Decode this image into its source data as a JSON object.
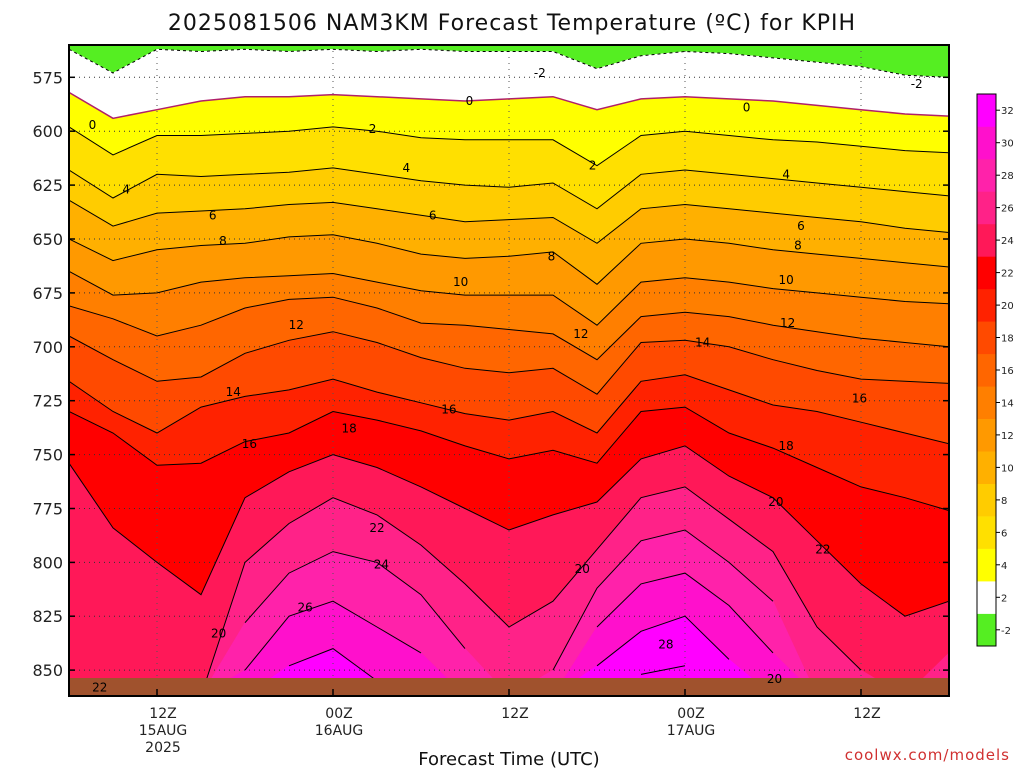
{
  "chart_data": {
    "type": "heatmap",
    "title": "2025081506 NAM3KM Forecast Temperature (ºC) for KPIH",
    "xlabel": "Forecast Time (UTC)",
    "ylabel": "",
    "y_axis": {
      "inverted": true,
      "ylim": [
        560,
        862
      ],
      "ticks": [
        575,
        600,
        625,
        650,
        675,
        700,
        725,
        750,
        775,
        800,
        825,
        850
      ]
    },
    "x_axis": {
      "range_hours_from_15AUG_00Z": [
        6,
        66
      ],
      "ticks": [
        {
          "hour": 12,
          "lines": [
            "12Z",
            "15AUG",
            "2025"
          ]
        },
        {
          "hour": 24,
          "lines": [
            "00Z",
            "16AUG"
          ]
        },
        {
          "hour": 36,
          "lines": [
            "12Z"
          ]
        },
        {
          "hour": 48,
          "lines": [
            "00Z",
            "17AUG"
          ]
        },
        {
          "hour": 60,
          "lines": [
            "12Z"
          ]
        }
      ]
    },
    "grid": true,
    "colorbar": {
      "levels": [
        -2,
        2,
        4,
        6,
        8,
        10,
        12,
        14,
        16,
        18,
        20,
        22,
        24,
        26,
        28,
        30,
        32
      ],
      "tick_labels": [
        "-2",
        "2",
        "4",
        "6",
        "8",
        "10",
        "12",
        "14",
        "16",
        "18",
        "20",
        "22",
        "24",
        "26",
        "28",
        "30",
        "32"
      ],
      "colors": [
        "#55ee22",
        "#ffffff",
        "#ffff00",
        "#ffe000",
        "#ffcc00",
        "#ffb000",
        "#ff9900",
        "#ff7f00",
        "#ff6600",
        "#ff4a00",
        "#ff2200",
        "#ff0000",
        "#ff1858",
        "#ff2288",
        "#ff22aa",
        "#ff10cc",
        "#ff00ff"
      ]
    },
    "ground_color": "#a0522d",
    "columns": [
      {
        "hour": 6,
        "isotherms": {
          "-2": 562,
          "0": 582,
          "2": 598,
          "4": 618,
          "6": 632,
          "8": 650,
          "10": 665,
          "12": 681,
          "14": 695,
          "16": 716,
          "18": 730,
          "20": 754,
          "22": 862
        }
      },
      {
        "hour": 9,
        "isotherms": {
          "-2": 573,
          "0": 594,
          "2": 611,
          "4": 631,
          "6": 644,
          "8": 660,
          "10": 676,
          "12": 687,
          "14": 706,
          "16": 730,
          "18": 740,
          "20": 784,
          "22": 862
        }
      },
      {
        "hour": 12,
        "isotherms": {
          "-2": 562,
          "0": 590,
          "2": 602,
          "4": 620,
          "6": 638,
          "8": 655,
          "10": 675,
          "12": 695,
          "14": 716,
          "16": 740,
          "18": 755,
          "20": 800,
          "22": 862
        }
      },
      {
        "hour": 15,
        "isotherms": {
          "-2": 563,
          "0": 586,
          "2": 602,
          "4": 621,
          "6": 637,
          "8": 653,
          "10": 670,
          "12": 690,
          "14": 714,
          "16": 728,
          "18": 754,
          "20": 815,
          "22": 862
        }
      },
      {
        "hour": 18,
        "isotherms": {
          "-2": 562,
          "0": 584,
          "2": 601,
          "4": 620,
          "6": 636,
          "8": 652,
          "10": 668,
          "12": 682,
          "14": 703,
          "16": 723,
          "18": 744,
          "20": 770,
          "22": 800,
          "24": 828,
          "26": 850
        }
      },
      {
        "hour": 21,
        "isotherms": {
          "-2": 563,
          "0": 584,
          "2": 600,
          "4": 619,
          "6": 634,
          "8": 649,
          "10": 667,
          "12": 678,
          "14": 697,
          "16": 720,
          "18": 740,
          "20": 758,
          "22": 782,
          "24": 805,
          "26": 825,
          "28": 848
        }
      },
      {
        "hour": 24,
        "isotherms": {
          "-2": 562,
          "0": 583,
          "2": 598,
          "4": 617,
          "6": 633,
          "8": 648,
          "10": 666,
          "12": 677,
          "14": 693,
          "16": 715,
          "18": 730,
          "20": 750,
          "22": 770,
          "24": 795,
          "26": 818,
          "28": 840
        }
      },
      {
        "hour": 27,
        "isotherms": {
          "-2": 563,
          "0": 584,
          "2": 600,
          "4": 620,
          "6": 636,
          "8": 652,
          "10": 670,
          "12": 682,
          "14": 698,
          "16": 721,
          "18": 734,
          "20": 756,
          "22": 778,
          "24": 800,
          "26": 830,
          "28": 855
        }
      },
      {
        "hour": 30,
        "isotherms": {
          "-2": 562,
          "0": 585,
          "2": 603,
          "4": 623,
          "6": 639,
          "8": 657,
          "10": 674,
          "12": 689,
          "14": 705,
          "16": 726,
          "18": 739,
          "20": 765,
          "22": 792,
          "24": 815,
          "26": 842
        }
      },
      {
        "hour": 33,
        "isotherms": {
          "-2": 563,
          "0": 586,
          "2": 604,
          "4": 625,
          "6": 642,
          "8": 659,
          "10": 676,
          "12": 690,
          "14": 710,
          "16": 731,
          "18": 746,
          "20": 775,
          "22": 810,
          "24": 840
        }
      },
      {
        "hour": 36,
        "isotherms": {
          "-2": 563,
          "0": 585,
          "2": 604,
          "4": 626,
          "6": 641,
          "8": 658,
          "10": 676,
          "12": 692,
          "14": 712,
          "16": 734,
          "18": 752,
          "20": 785,
          "22": 830
        }
      },
      {
        "hour": 39,
        "isotherms": {
          "-2": 563,
          "0": 584,
          "2": 604,
          "4": 624,
          "6": 640,
          "8": 656,
          "10": 676,
          "12": 694,
          "14": 710,
          "16": 730,
          "18": 748,
          "20": 778,
          "22": 818,
          "24": 850
        }
      },
      {
        "hour": 42,
        "isotherms": {
          "-2": 571,
          "0": 590,
          "2": 616,
          "4": 636,
          "6": 652,
          "8": 671,
          "10": 690,
          "12": 706,
          "14": 722,
          "16": 740,
          "18": 754,
          "20": 772,
          "22": 794,
          "24": 812,
          "26": 830,
          "28": 848
        }
      },
      {
        "hour": 45,
        "isotherms": {
          "-2": 565,
          "0": 585,
          "2": 602,
          "4": 620,
          "6": 636,
          "8": 652,
          "10": 670,
          "12": 686,
          "14": 698,
          "16": 716,
          "18": 730,
          "20": 752,
          "22": 770,
          "24": 790,
          "26": 810,
          "28": 832,
          "30": 852
        }
      },
      {
        "hour": 48,
        "isotherms": {
          "-2": 563,
          "0": 584,
          "2": 600,
          "4": 618,
          "6": 634,
          "8": 650,
          "10": 668,
          "12": 684,
          "14": 697,
          "16": 713,
          "18": 728,
          "20": 746,
          "22": 765,
          "24": 785,
          "26": 805,
          "28": 825,
          "30": 848
        }
      },
      {
        "hour": 51,
        "isotherms": {
          "-2": 564,
          "0": 585,
          "2": 602,
          "4": 620,
          "6": 636,
          "8": 652,
          "10": 670,
          "12": 686,
          "14": 700,
          "16": 720,
          "18": 740,
          "20": 760,
          "22": 780,
          "24": 800,
          "26": 820,
          "28": 845
        }
      },
      {
        "hour": 54,
        "isotherms": {
          "-2": 566,
          "0": 586,
          "2": 604,
          "4": 622,
          "6": 638,
          "8": 655,
          "10": 673,
          "12": 690,
          "14": 706,
          "16": 727,
          "18": 747,
          "20": 770,
          "22": 795,
          "24": 818,
          "26": 842
        }
      },
      {
        "hour": 57,
        "isotherms": {
          "-2": 568,
          "0": 588,
          "2": 605,
          "4": 624,
          "6": 640,
          "8": 657,
          "10": 675,
          "12": 693,
          "14": 711,
          "16": 730,
          "18": 756,
          "20": 790,
          "22": 830
        }
      },
      {
        "hour": 60,
        "isotherms": {
          "-2": 570,
          "0": 590,
          "2": 607,
          "4": 626,
          "6": 642,
          "8": 659,
          "10": 677,
          "12": 696,
          "14": 715,
          "16": 735,
          "18": 765,
          "20": 810,
          "22": 850
        }
      },
      {
        "hour": 63,
        "isotherms": {
          "-2": 574,
          "0": 592,
          "2": 609,
          "4": 628,
          "6": 645,
          "8": 661,
          "10": 679,
          "12": 698,
          "14": 716,
          "16": 740,
          "18": 770,
          "20": 825
        }
      },
      {
        "hour": 66,
        "isotherms": {
          "-2": 575,
          "0": 593,
          "2": 610,
          "4": 630,
          "6": 647,
          "8": 663,
          "10": 680,
          "12": 700,
          "14": 717,
          "16": 745,
          "18": 776,
          "20": 818,
          "22": 842
        }
      }
    ],
    "contour_labels": [
      {
        "value": "-2",
        "hour": 38.1,
        "p": 573
      },
      {
        "value": "-2",
        "hour": 63.8,
        "p": 578
      },
      {
        "value": "0",
        "hour": 7.6,
        "p": 597
      },
      {
        "value": "0",
        "hour": 33.3,
        "p": 586
      },
      {
        "value": "0",
        "hour": 52.2,
        "p": 589
      },
      {
        "value": "2",
        "hour": 26.7,
        "p": 599
      },
      {
        "value": "2",
        "hour": 41.7,
        "p": 616
      },
      {
        "value": "4",
        "hour": 9.9,
        "p": 627
      },
      {
        "value": "4",
        "hour": 29.0,
        "p": 617
      },
      {
        "value": "4",
        "hour": 54.9,
        "p": 620
      },
      {
        "value": "6",
        "hour": 15.8,
        "p": 639
      },
      {
        "value": "6",
        "hour": 30.8,
        "p": 639
      },
      {
        "value": "6",
        "hour": 55.9,
        "p": 644
      },
      {
        "value": "8",
        "hour": 16.5,
        "p": 651
      },
      {
        "value": "8",
        "hour": 38.9,
        "p": 658
      },
      {
        "value": "8",
        "hour": 55.7,
        "p": 653
      },
      {
        "value": "10",
        "hour": 32.7,
        "p": 670
      },
      {
        "value": "10",
        "hour": 54.9,
        "p": 669
      },
      {
        "value": "12",
        "hour": 21.5,
        "p": 690
      },
      {
        "value": "12",
        "hour": 40.9,
        "p": 694
      },
      {
        "value": "12",
        "hour": 55.0,
        "p": 689
      },
      {
        "value": "14",
        "hour": 17.2,
        "p": 721
      },
      {
        "value": "14",
        "hour": 49.2,
        "p": 698
      },
      {
        "value": "16",
        "hour": 18.3,
        "p": 745
      },
      {
        "value": "16",
        "hour": 31.9,
        "p": 729
      },
      {
        "value": "16",
        "hour": 59.9,
        "p": 724
      },
      {
        "value": "18",
        "hour": 25.1,
        "p": 738
      },
      {
        "value": "18",
        "hour": 54.9,
        "p": 746
      },
      {
        "value": "20",
        "hour": 16.2,
        "p": 833
      },
      {
        "value": "20",
        "hour": 41.0,
        "p": 803
      },
      {
        "value": "20",
        "hour": 54.2,
        "p": 772
      },
      {
        "value": "20",
        "hour": 54.1,
        "p": 854
      },
      {
        "value": "22",
        "hour": 27.0,
        "p": 784
      },
      {
        "value": "22",
        "hour": 57.4,
        "p": 794
      },
      {
        "value": "22",
        "hour": 8.1,
        "p": 858
      },
      {
        "value": "24",
        "hour": 27.3,
        "p": 801
      },
      {
        "value": "26",
        "hour": 22.1,
        "p": 821
      },
      {
        "value": "28",
        "hour": 46.7,
        "p": 838
      }
    ]
  },
  "credit": "coolwx.com/models"
}
